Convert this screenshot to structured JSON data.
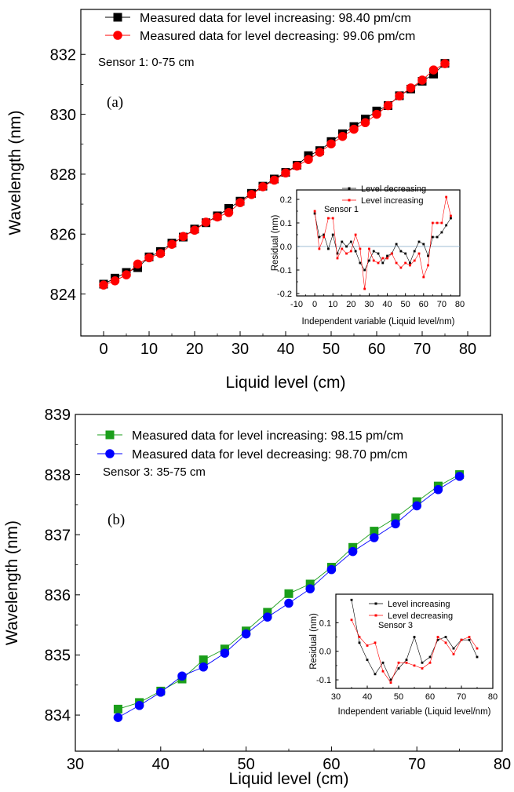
{
  "chart_data": [
    {
      "type": "line",
      "panel_label": "(a)",
      "annotation": "Sensor 1: 0-75 cm",
      "xlabel": "Liquid level (cm)",
      "ylabel": "Wavelength (nm)",
      "xlim": [
        -5,
        85
      ],
      "ylim": [
        822.6,
        833.5
      ],
      "xticks": [
        0,
        10,
        20,
        30,
        40,
        50,
        60,
        70,
        80
      ],
      "yticks": [
        824,
        826,
        828,
        830,
        832
      ],
      "legend_position": "top-left",
      "series": [
        {
          "name": "Measured data for level increasing: 98.40 pm/cm",
          "color": "#000000",
          "marker": "square",
          "x": [
            0,
            2.5,
            5,
            7.5,
            10,
            12.5,
            15,
            17.5,
            20,
            22.5,
            25,
            27.5,
            30,
            32.5,
            35,
            37.5,
            40,
            42.5,
            45,
            47.5,
            50,
            52.5,
            55,
            57.5,
            60,
            62.5,
            65,
            67.5,
            70,
            72.5,
            75
          ],
          "y": [
            824.33,
            824.53,
            824.72,
            824.88,
            825.24,
            825.42,
            825.7,
            825.9,
            826.17,
            826.38,
            826.61,
            826.86,
            827.1,
            827.36,
            827.6,
            827.84,
            828.06,
            828.3,
            828.62,
            828.79,
            829.09,
            829.35,
            829.59,
            829.84,
            830.11,
            830.29,
            830.62,
            830.84,
            831.1,
            831.34,
            831.7
          ]
        },
        {
          "name": "Measured data for level decreasing: 99.06 pm/cm",
          "color": "#ff0000",
          "marker": "circle",
          "x": [
            0,
            2.5,
            5,
            7.5,
            10,
            12.5,
            15,
            17.5,
            20,
            22.5,
            25,
            27.5,
            30,
            32.5,
            35,
            37.5,
            40,
            42.5,
            45,
            47.5,
            50,
            52.5,
            55,
            57.5,
            60,
            62.5,
            65,
            67.5,
            70,
            72.5,
            75
          ],
          "y": [
            824.3,
            824.44,
            824.64,
            825.0,
            825.21,
            825.35,
            825.66,
            825.92,
            826.13,
            826.4,
            826.57,
            826.72,
            827.05,
            827.32,
            827.58,
            827.8,
            828.04,
            828.27,
            828.49,
            828.73,
            829.01,
            829.26,
            829.5,
            829.72,
            830.0,
            830.29,
            830.61,
            830.88,
            831.14,
            831.48,
            831.69
          ]
        }
      ],
      "inset": {
        "xlabel": "Independent variable (Liquid level/nm)",
        "ylabel": "Residual (nm)",
        "annotation": "Sensor 1",
        "xlim": [
          -10,
          80
        ],
        "ylim": [
          -0.21,
          0.24
        ],
        "xticks": [
          -10,
          0,
          10,
          20,
          30,
          40,
          50,
          60,
          70,
          80
        ],
        "yticks": [
          -0.2,
          -0.1,
          0.0,
          0.1,
          0.2
        ],
        "zero_line": true,
        "series": [
          {
            "name": "Level decreasing",
            "color": "#000000",
            "x": [
              0,
              2.5,
              5,
              7.5,
              10,
              12.5,
              15,
              17.5,
              20,
              22.5,
              25,
              27.5,
              30,
              32.5,
              35,
              37.5,
              40,
              42.5,
              45,
              47.5,
              50,
              52.5,
              55,
              57.5,
              60,
              62.5,
              65,
              67.5,
              70,
              72.5,
              75
            ],
            "y": [
              0.14,
              0.04,
              0.05,
              -0.01,
              0.05,
              -0.03,
              0.02,
              0.0,
              0.02,
              -0.02,
              -0.07,
              -0.1,
              -0.06,
              -0.02,
              -0.03,
              -0.07,
              -0.04,
              -0.03,
              0.01,
              -0.02,
              -0.03,
              -0.07,
              -0.02,
              0.02,
              0.01,
              -0.04,
              0.04,
              0.04,
              0.06,
              0.09,
              0.12
            ]
          },
          {
            "name": "Level increasing",
            "color": "#ff0000",
            "x": [
              0,
              2.5,
              5,
              7.5,
              10,
              12.5,
              15,
              17.5,
              20,
              22.5,
              25,
              27.5,
              30,
              32.5,
              35,
              37.5,
              40,
              42.5,
              45,
              47.5,
              50,
              52.5,
              55,
              57.5,
              60,
              62.5,
              65,
              67.5,
              70,
              72.5,
              75
            ],
            "y": [
              0.15,
              -0.01,
              0.04,
              0.12,
              0.12,
              -0.05,
              -0.01,
              -0.03,
              -0.02,
              0.05,
              -0.01,
              -0.18,
              -0.01,
              -0.06,
              -0.07,
              -0.05,
              -0.05,
              -0.03,
              -0.07,
              -0.09,
              -0.07,
              -0.08,
              -0.06,
              -0.03,
              -0.13,
              -0.08,
              0.1,
              0.1,
              0.1,
              0.21,
              0.13
            ]
          }
        ]
      }
    },
    {
      "type": "line",
      "panel_label": "(b)",
      "annotation": "Sensor 3: 35-75 cm",
      "xlabel": "Liquid level (cm)",
      "ylabel": "Wavelength (nm)",
      "xlim": [
        30,
        80
      ],
      "ylim": [
        833.4,
        839
      ],
      "xticks": [
        30,
        40,
        50,
        60,
        70,
        80
      ],
      "yticks": [
        834,
        835,
        836,
        837,
        838,
        839
      ],
      "legend_position": "top-left",
      "series": [
        {
          "name": "Measured data for level increasing: 98.15 pm/cm",
          "color": "#1a9e1a",
          "marker": "square",
          "x": [
            35,
            37.5,
            40,
            42.5,
            45,
            47.5,
            50,
            52.5,
            55,
            57.5,
            60,
            62.5,
            65,
            67.5,
            70,
            72.5,
            75
          ],
          "y": [
            834.1,
            834.21,
            834.4,
            834.6,
            834.92,
            835.1,
            835.4,
            835.71,
            836.02,
            836.18,
            836.46,
            836.79,
            837.06,
            837.28,
            837.55,
            837.81,
            838.0
          ]
        },
        {
          "name": "Measured data for level decreasing: 98.70 pm/cm",
          "color": "#0000ff",
          "marker": "circle",
          "x": [
            35,
            37.5,
            40,
            42.5,
            45,
            47.5,
            50,
            52.5,
            55,
            57.5,
            60,
            62.5,
            65,
            67.5,
            70,
            72.5,
            75
          ],
          "y": [
            833.96,
            834.16,
            834.38,
            834.65,
            834.8,
            835.03,
            835.35,
            835.63,
            835.86,
            836.1,
            836.42,
            836.72,
            836.95,
            837.18,
            837.48,
            837.75,
            837.97
          ]
        }
      ],
      "inset": {
        "xlabel": "Independent variable (Liquid level/nm)",
        "ylabel": "Residual (nm)",
        "annotation": "Sensor 3",
        "xlim": [
          30,
          80
        ],
        "ylim": [
          -0.13,
          0.2
        ],
        "xticks": [
          30,
          40,
          50,
          60,
          70,
          80
        ],
        "yticks": [
          -0.1,
          0.0,
          0.1
        ],
        "zero_line": false,
        "series": [
          {
            "name": "Level increasing",
            "color": "#000000",
            "x": [
              35,
              37.5,
              40,
              42.5,
              45,
              47.5,
              50,
              52.5,
              55,
              57.5,
              60,
              62.5,
              65,
              67.5,
              70,
              72.5,
              75
            ],
            "y": [
              0.18,
              0.03,
              -0.03,
              -0.08,
              -0.04,
              -0.1,
              -0.06,
              -0.03,
              0.05,
              -0.04,
              -0.02,
              0.04,
              0.05,
              0.01,
              0.04,
              0.04,
              -0.02
            ]
          },
          {
            "name": "Level decreasing",
            "color": "#ff0000",
            "x": [
              35,
              37.5,
              40,
              42.5,
              45,
              47.5,
              50,
              52.5,
              55,
              57.5,
              60,
              62.5,
              65,
              67.5,
              70,
              72.5,
              75
            ],
            "y": [
              0.11,
              0.05,
              0.02,
              0.03,
              -0.07,
              -0.11,
              -0.04,
              -0.04,
              -0.05,
              -0.06,
              -0.04,
              0.05,
              0.03,
              -0.01,
              0.04,
              0.05,
              0.01
            ]
          }
        ]
      }
    }
  ]
}
